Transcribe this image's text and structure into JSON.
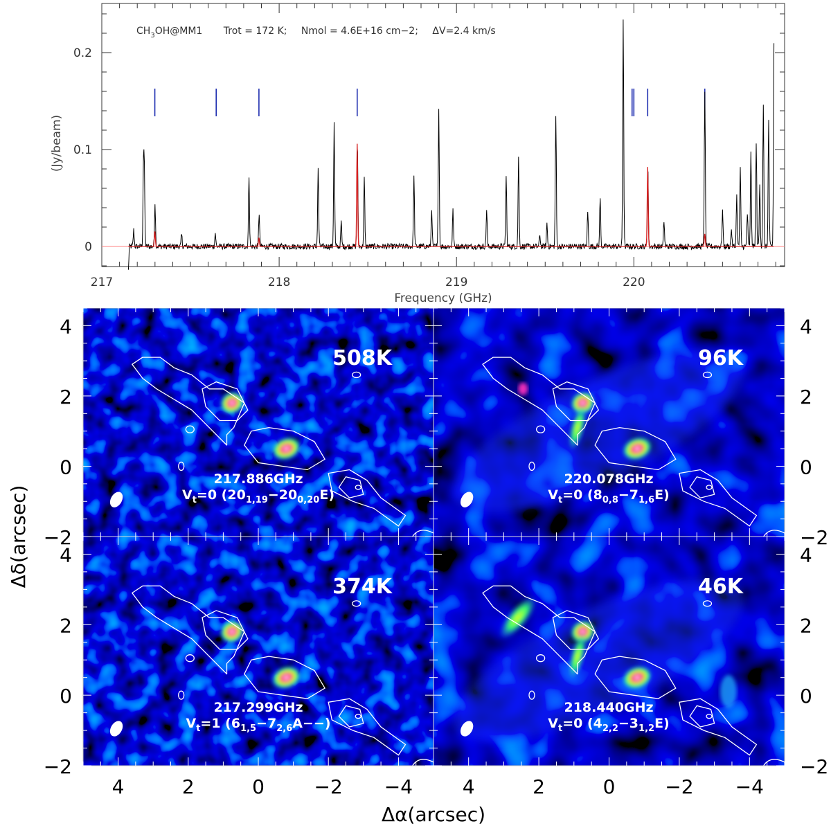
{
  "header": {
    "molecule": "CH",
    "molecule_sub": "3",
    "molecule_rest": "OH@MM1",
    "trot": "Trot = 172 K;",
    "nmol": "Nmol = 4.6E+16 cm−2;",
    "dv": "ΔV=2.4 km/s"
  },
  "colors": {
    "observed": "#000000",
    "model": "#d62020",
    "markers": "#1f2fb0",
    "baseline": "#ff8080",
    "map_background": "#000018",
    "contour": "#ffffff"
  },
  "chart_data": [
    {
      "type": "line",
      "xlabel": "Frequency (GHz)",
      "ylabel": "(Jy/beam)",
      "xlim": [
        217.0,
        220.85
      ],
      "ylim": [
        -0.02,
        0.25
      ],
      "x_ticks": [
        "217",
        "218",
        "219",
        "220"
      ],
      "y_ticks": [
        "0",
        "0.1",
        "0.2"
      ],
      "line_markers_ghz": [
        217.299,
        217.645,
        217.886,
        218.44,
        219.99,
        220.0,
        220.078,
        220.4
      ],
      "series": [
        {
          "role": "observed",
          "peaks": [
            [
              217.18,
              0.017
            ],
            [
              217.235,
              0.08
            ],
            [
              217.24,
              0.068
            ],
            [
              217.3,
              0.045
            ],
            [
              217.45,
              0.012
            ],
            [
              217.64,
              0.014
            ],
            [
              217.83,
              0.073
            ],
            [
              217.887,
              0.035
            ],
            [
              218.22,
              0.092
            ],
            [
              218.31,
              0.127
            ],
            [
              218.35,
              0.025
            ],
            [
              218.441,
              0.11
            ],
            [
              218.48,
              0.07
            ],
            [
              218.76,
              0.072
            ],
            [
              218.86,
              0.039
            ],
            [
              218.9,
              0.145
            ],
            [
              218.98,
              0.037
            ],
            [
              219.17,
              0.038
            ],
            [
              219.28,
              0.073
            ],
            [
              219.35,
              0.091
            ],
            [
              219.47,
              0.012
            ],
            [
              219.51,
              0.024
            ],
            [
              219.56,
              0.147
            ],
            [
              219.74,
              0.036
            ],
            [
              219.81,
              0.051
            ],
            [
              219.94,
              0.236
            ],
            [
              220.079,
              0.082
            ],
            [
              220.17,
              0.027
            ],
            [
              220.4,
              0.182
            ],
            [
              220.5,
              0.037
            ],
            [
              220.55,
              0.018
            ],
            [
              220.58,
              0.052
            ],
            [
              220.6,
              0.08
            ],
            [
              220.64,
              0.034
            ],
            [
              220.66,
              0.096
            ],
            [
              220.69,
              0.107
            ],
            [
              220.71,
              0.064
            ],
            [
              220.73,
              0.145
            ],
            [
              220.76,
              0.13
            ],
            [
              220.79,
              0.209
            ]
          ],
          "dips": [
            [
              217.15,
              -0.025
            ],
            [
              218.22,
              -0.013
            ],
            [
              219.56,
              -0.012
            ],
            [
              220.4,
              -0.025
            ]
          ]
        },
        {
          "role": "model",
          "peaks": [
            [
              217.299,
              0.016
            ],
            [
              217.886,
              0.009
            ],
            [
              218.44,
              0.106
            ],
            [
              220.078,
              0.082
            ],
            [
              220.4,
              0.013
            ]
          ]
        }
      ]
    },
    {
      "type": "heatmap",
      "xlabel": "Δα(arcsec)",
      "ylabel": "Δδ(arcsec)",
      "xlim": [
        5,
        -5
      ],
      "ylim": [
        -2,
        4.5
      ],
      "x_ticks": [
        "4",
        "2",
        "0",
        "−2",
        "−4"
      ],
      "y_ticks": [
        "4",
        "2",
        "0",
        "−2"
      ],
      "panels": [
        {
          "temperature": "508K",
          "frequency": "217.886GHz",
          "transition": "Vt=0 (20 1,19 − 20 0,20 E)",
          "vt": "0",
          "qn_a": "20",
          "sub_a": "1,19",
          "qn_b": "20",
          "sub_b": "0,20",
          "tail": "E)"
        },
        {
          "temperature": "96K",
          "frequency": "220.078GHz",
          "transition": "Vt=0 (8 0,8 − 7 1,6 E)",
          "vt": "0",
          "qn_a": "8",
          "sub_a": "0,8",
          "qn_b": "7",
          "sub_b": "1,6",
          "tail": "E)"
        },
        {
          "temperature": "374K",
          "frequency": "217.299GHz",
          "transition": "Vt=1 (6 1,5 − 7 2,6 A−−)",
          "vt": "1",
          "qn_a": "6",
          "sub_a": "1,5",
          "qn_b": "7",
          "sub_b": "2,6",
          "tail": "A−−)"
        },
        {
          "temperature": "46K",
          "frequency": "218.440GHz",
          "transition": "Vt=0 (4 2,2 − 3 1,2 E)",
          "vt": "0",
          "qn_a": "4",
          "sub_a": "2,2",
          "qn_b": "3",
          "sub_b": "1,2",
          "tail": "E)"
        }
      ]
    }
  ]
}
